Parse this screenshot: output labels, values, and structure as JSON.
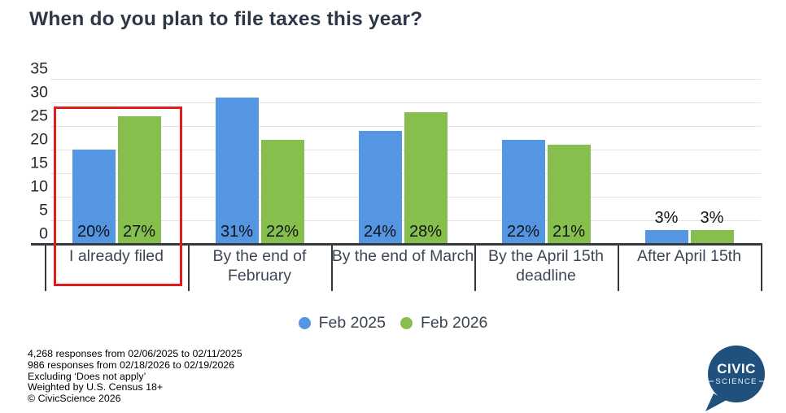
{
  "title": "When do you plan to file taxes this year?",
  "chart_data": {
    "type": "bar",
    "categories": [
      "I already filed",
      "By the end of February",
      "By the end of March",
      "By the April 15th deadline",
      "After April 15th"
    ],
    "series": [
      {
        "name": "Feb 2025",
        "color": "#5596e2",
        "values": [
          20,
          31,
          24,
          22,
          3
        ]
      },
      {
        "name": "Feb 2026",
        "color": "#87bf4f",
        "values": [
          27,
          22,
          28,
          21,
          3
        ]
      }
    ],
    "value_suffix": "%",
    "xlabel": "",
    "ylabel": "",
    "ylim": [
      0,
      35
    ],
    "ytick_step": 5,
    "grid": true,
    "legend_position": "bottom",
    "annotations": [
      {
        "type": "highlight-box",
        "category": "I already filed",
        "category_index": 0,
        "color": "#e11c1c"
      }
    ]
  },
  "footer": {
    "lines": [
      "4,268 responses from 02/06/2025 to 02/11/2025",
      "986 responses from 02/18/2026 to 02/19/2026",
      "Excluding ‘Does not apply’",
      "Weighted by U.S. Census 18+",
      "© CivicScience 2026"
    ]
  },
  "logo": {
    "line1": "CIVIC",
    "line2": "SCIENCE",
    "bg_color": "#20517e"
  }
}
